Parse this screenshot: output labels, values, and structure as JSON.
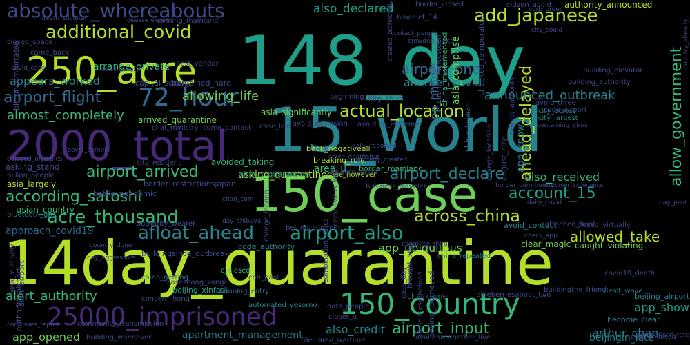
{
  "palette": {
    "background": "#000000",
    "yellow_green": "#b5de2b",
    "light_green": "#6ece58",
    "green": "#35b779",
    "teal_green": "#1f9e89",
    "teal": "#26828e",
    "blue": "#31688e",
    "indigo": "#3e4989",
    "purple": "#482878",
    "deep_purple": "#440154"
  },
  "words": [
    {
      "text": "148_day",
      "color": "#1f9e89"
    },
    {
      "text": "15_world",
      "color": "#26828e"
    },
    {
      "text": "14day_quarantine",
      "color": "#b5de2b"
    },
    {
      "text": "150_case",
      "color": "#6ece58"
    },
    {
      "text": "2000_total",
      "color": "#482878"
    },
    {
      "text": "250_acre",
      "color": "#b5de2b"
    },
    {
      "text": "150_country",
      "color": "#35b779"
    },
    {
      "text": "25000_imprisoned",
      "color": "#482878"
    },
    {
      "text": "72_hour",
      "color": "#31688e"
    },
    {
      "text": "absolute_whereabouts",
      "color": "#3e4989"
    },
    {
      "text": "additional_covid",
      "color": "#b5de2b"
    },
    {
      "text": "add_japanese",
      "color": "#b5de2b"
    },
    {
      "text": "airport_flight",
      "color": "#31688e"
    },
    {
      "text": "actual_location",
      "color": "#b5de2b"
    },
    {
      "text": "according_satoshi",
      "color": "#35b779"
    },
    {
      "text": "acre_thousand",
      "color": "#35b779"
    },
    {
      "text": "afloat_ahead",
      "color": "#26828e"
    },
    {
      "text": "across_china",
      "color": "#b5de2b"
    },
    {
      "text": "airport_also",
      "color": "#1f9e89"
    },
    {
      "text": "airport_declare",
      "color": "#26828e"
    },
    {
      "text": "account_15",
      "color": "#1f9e89"
    },
    {
      "text": "ahead_delayed",
      "color": "#b5de2b"
    },
    {
      "text": "allow_government",
      "color": "#35b779"
    },
    {
      "text": "airport_input",
      "color": "#35b779"
    },
    {
      "text": "airport_arrived",
      "color": "#35b779"
    },
    {
      "text": "allowed_take",
      "color": "#b5de2b"
    },
    {
      "text": "airport_one",
      "color": "#31688e"
    },
    {
      "text": "also_declared",
      "color": "#1f9e89"
    },
    {
      "text": "allowing_life",
      "color": "#6ece58"
    },
    {
      "text": "almost_completely",
      "color": "#35b779"
    },
    {
      "text": "announced_outbreak",
      "color": "#26828e"
    },
    {
      "text": "alert_authority",
      "color": "#35b779"
    },
    {
      "text": "appears_worked",
      "color": "#26828e"
    },
    {
      "text": "approach_covid19",
      "color": "#31688e"
    },
    {
      "text": "also_received",
      "color": "#35b779"
    },
    {
      "text": "app_ubiquitous",
      "color": "#6ece58"
    },
    {
      "text": "app_show",
      "color": "#1f9e89"
    },
    {
      "text": "app_opened",
      "color": "#6ece58"
    },
    {
      "text": "apartment_management",
      "color": "#26828e"
    },
    {
      "text": "also_credit",
      "color": "#26828e"
    },
    {
      "text": "arthur_chan",
      "color": "#26828e"
    },
    {
      "text": "app_phone",
      "color": "#31688e"
    },
    {
      "text": "another_covid",
      "color": "#26828e"
    },
    {
      "text": "arrange_private",
      "color": "#35b779"
    },
    {
      "text": "avoided_taking",
      "color": "#35b779"
    },
    {
      "text": "asking_quarantine",
      "color": "#b5de2b"
    },
    {
      "text": "asia_significantly",
      "color": "#6ece58"
    },
    {
      "text": "app_know",
      "color": "#26828e"
    },
    {
      "text": "authority_announced",
      "color": "#b5de2b"
    },
    {
      "text": "beijingin_late",
      "color": "#26828e"
    },
    {
      "text": "asia_comprise",
      "color": "#6ece58"
    },
    {
      "text": "area_u",
      "color": "#35b779"
    },
    {
      "text": "asking_stand",
      "color": "#3e4989"
    },
    {
      "text": "asia_largely",
      "color": "#b5de2b"
    },
    {
      "text": "asian_country",
      "color": "#35b779"
    },
    {
      "text": "arrived_quarantine",
      "color": "#6ece58"
    },
    {
      "text": "capital_second",
      "color": "#3e4989"
    },
    {
      "text": "bargained_hard",
      "color": "#3e4989"
    },
    {
      "text": "airport_quarantine",
      "color": "#1f9e89"
    },
    {
      "text": "checked_temperature",
      "color": "#3e4989"
    },
    {
      "text": "city_third",
      "color": "#3e4989"
    },
    {
      "text": "back_negativeall",
      "color": "#b5de2b"
    },
    {
      "text": "breaking_rule",
      "color": "#b5de2b"
    },
    {
      "text": "case_however",
      "color": "#b5de2b"
    },
    {
      "text": "border_mainland",
      "color": "#35b779"
    },
    {
      "text": "battle_pandemic",
      "color": "#3e4989"
    },
    {
      "text": "border_restrictionsjapan",
      "color": "#3e4989"
    },
    {
      "text": "avoid_contact",
      "color": "#26828e"
    },
    {
      "text": "clear_magic",
      "color": "#6ece58"
    },
    {
      "text": "caught_violating",
      "color": "#6ece58"
    },
    {
      "text": "code_authority",
      "color": "#26828e"
    },
    {
      "text": "check_one",
      "color": "#31688e"
    },
    {
      "text": "beijing_airport",
      "color": "#26828e"
    },
    {
      "text": "become_clear",
      "color": "#26828e"
    },
    {
      "text": "dealt_wave",
      "color": "#26828e"
    },
    {
      "text": "beijing_xinfadi",
      "color": "#1f9e89"
    },
    {
      "text": "c_closed",
      "color": "#35b779"
    },
    {
      "text": "banning_entry",
      "color": "#31688e"
    },
    {
      "text": "automated_yesorno",
      "color": "#26828e"
    },
    {
      "text": "bluetooth_gps",
      "color": "#26828e"
    },
    {
      "text": "china_getting",
      "color": "#31688e"
    },
    {
      "text": "city_across",
      "color": "#26828e"
    },
    {
      "text": "city_largest",
      "color": "#26828e"
    },
    {
      "text": "code_airport",
      "color": "#3e4989"
    },
    {
      "text": "avoid_three",
      "color": "#3e4989"
    },
    {
      "text": "china_implemented",
      "color": "#35b779"
    },
    {
      "text": "chan_told",
      "color": "#31688e"
    },
    {
      "text": "china_taiwan",
      "color": "#31688e"
    },
    {
      "text": "avoiding_extreme",
      "color": "#3e4989"
    },
    {
      "text": "avoid_explosion",
      "color": "#3e4989"
    },
    {
      "text": "china_repeated",
      "color": "#26828e"
    },
    {
      "text": "chat_ministry",
      "color": "#3e4989"
    },
    {
      "text": "come_contact",
      "color": "#3e4989"
    },
    {
      "text": "city_resident",
      "color": "#3e4989"
    },
    {
      "text": "case_last",
      "color": "#3e4989"
    },
    {
      "text": "bracelet_14",
      "color": "#3e4989"
    },
    {
      "text": "border_closed",
      "color": "#3e4989"
    },
    {
      "text": "beginning_end",
      "color": "#3e4989"
    },
    {
      "text": "building_elevator",
      "color": "#3e4989"
    },
    {
      "text": "building_authority",
      "color": "#3e4989"
    },
    {
      "text": "beijing_authority",
      "color": "#3e4989"
    },
    {
      "text": "august_city",
      "color": "#3e4989"
    },
    {
      "text": "change_location",
      "color": "#3e4989"
    },
    {
      "text": "cherry_mangosteen",
      "color": "#3e4989"
    },
    {
      "text": "cleanliness_helped",
      "color": "#3e4989"
    },
    {
      "text": "buildingsince_outbreak",
      "color": "#3e4989"
    },
    {
      "text": "caseshong_kongi",
      "color": "#3e4989"
    },
    {
      "text": "alert_airport",
      "color": "#3e4989"
    },
    {
      "text": "authority_airport",
      "color": "#3e4989"
    },
    {
      "text": "bit_uncomfortable",
      "color": "#3e4989"
    },
    {
      "text": "came_back",
      "color": "#3e4989"
    },
    {
      "text": "closed_space",
      "color": "#3e4989"
    },
    {
      "text": "death_societal",
      "color": "#3e4989"
    },
    {
      "text": "citizen_avoid",
      "color": "#3e4989"
    },
    {
      "text": "curb_order",
      "color": "#3e4989"
    },
    {
      "text": "country_done",
      "color": "#3e4989"
    },
    {
      "text": "day_aggressive",
      "color": "#3e4989"
    },
    {
      "text": "continues_report",
      "color": "#3e4989"
    },
    {
      "text": "community_transmission",
      "color": "#3e4989"
    },
    {
      "text": "building_whenever",
      "color": "#3e4989"
    },
    {
      "text": "concern_hong",
      "color": "#3e4989"
    },
    {
      "text": "declared_wartime",
      "color": "#3e4989"
    },
    {
      "text": "data_people",
      "color": "#3e4989"
    },
    {
      "text": "closer_u",
      "color": "#3e4989"
    },
    {
      "text": "blueberriesabout_two",
      "color": "#3e4989"
    },
    {
      "text": "buildingthe_friend",
      "color": "#3e4989"
    },
    {
      "text": "beijing_journeyed",
      "color": "#3e4989"
    },
    {
      "text": "availablewhether_live",
      "color": "#3e4989"
    },
    {
      "text": "brought_best",
      "color": "#3e4989"
    },
    {
      "text": "case_day",
      "color": "#3e4989"
    },
    {
      "text": "combination_strict",
      "color": "#3e4989"
    },
    {
      "text": "college_london",
      "color": "#3e4989"
    },
    {
      "text": "cnn_past",
      "color": "#3e4989"
    },
    {
      "text": "beijing_summer",
      "color": "#3e4989"
    },
    {
      "text": "comprise_third",
      "color": "#3e4989"
    },
    {
      "text": "covid19_death",
      "color": "#3e4989"
    },
    {
      "text": "attached_front",
      "color": "#3e4989"
    },
    {
      "text": "daily_covid",
      "color": "#3e4989"
    },
    {
      "text": "closed_virtually",
      "color": "#3e4989"
    },
    {
      "text": "customer_experience",
      "color": "#3e4989"
    },
    {
      "text": "day_past",
      "color": "#3e4989"
    },
    {
      "text": "border_community",
      "color": "#3e4989"
    },
    {
      "text": "business_traveler",
      "color": "#3e4989"
    },
    {
      "text": "coronavirus_wave",
      "color": "#3e4989"
    },
    {
      "text": "country_recent",
      "color": "#3e4989"
    },
    {
      "text": "covid_deathsbut",
      "color": "#3e4989"
    },
    {
      "text": "daily_reported",
      "color": "#3e4989"
    },
    {
      "text": "company_created",
      "color": "#3e4989"
    },
    {
      "text": "containing_virus",
      "color": "#3e4989"
    },
    {
      "text": "covid_sample",
      "color": "#3e4989"
    },
    {
      "text": "delayed_olympics",
      "color": "#3e4989"
    },
    {
      "text": "billion_people",
      "color": "#3e4989"
    },
    {
      "text": "authority_wearer",
      "color": "#3e4989"
    },
    {
      "text": "day_shibuya",
      "color": "#3e4989"
    },
    {
      "text": "chan_com",
      "color": "#3e4989"
    },
    {
      "text": "best_vendor",
      "color": "#3e4989"
    },
    {
      "text": "coming_mainland",
      "color": "#3e4989"
    },
    {
      "text": "disease_expert",
      "color": "#3e4989"
    },
    {
      "text": "contact_people",
      "color": "#3e4989"
    },
    {
      "text": "crowded_place",
      "color": "#3e4989"
    },
    {
      "text": "covid_case",
      "color": "#3e4989"
    },
    {
      "text": "detail_travel",
      "color": "#3e4989"
    },
    {
      "text": "created_technology",
      "color": "#3e4989"
    },
    {
      "text": "country_already",
      "color": "#3e4989"
    },
    {
      "text": "city_could",
      "color": "#3e4989"
    },
    {
      "text": "comparison_rate",
      "color": "#3e4989"
    },
    {
      "text": "child_enforced",
      "color": "#3e4989"
    },
    {
      "text": "check_app",
      "color": "#3e4989"
    },
    {
      "text": "china_relatively",
      "color": "#3e4989"
    }
  ]
}
